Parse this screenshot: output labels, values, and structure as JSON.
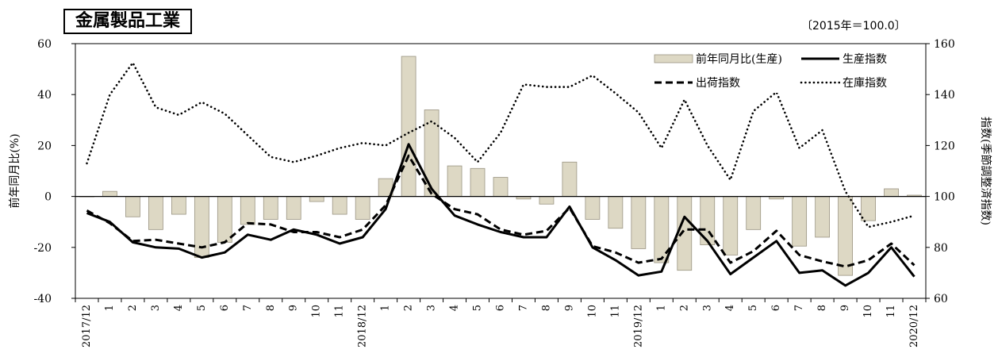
{
  "title": "金属製品工業",
  "base_note": "〔2015年＝100.0〕",
  "chart_data": {
    "type": "bar+line",
    "categories": [
      "2017/12",
      "1",
      "2",
      "3",
      "4",
      "5",
      "6",
      "7",
      "8",
      "9",
      "10",
      "11",
      "2018/12",
      "1",
      "2",
      "3",
      "4",
      "5",
      "6",
      "7",
      "8",
      "9",
      "10",
      "11",
      "2019/12",
      "1",
      "2",
      "3",
      "4",
      "5",
      "6",
      "7",
      "8",
      "9",
      "10",
      "11",
      "2020/12"
    ],
    "ylabel_left": "前年同月比(%)",
    "ylabel_right": "指数(季節調整済指数)",
    "yleft_range": [
      -40,
      60
    ],
    "yleft_ticks": [
      -40,
      -20,
      0,
      20,
      40,
      60
    ],
    "yright_range": [
      60,
      160
    ],
    "yright_ticks": [
      60,
      80,
      100,
      120,
      140,
      160
    ],
    "series": [
      {
        "name": "前年同月比(生産)",
        "type": "bar",
        "axis": "left",
        "color": "#ddd8c4",
        "values": [
          0,
          2,
          -8,
          -13,
          -7,
          -24,
          -18,
          -11,
          -9,
          -9,
          -2,
          -7,
          -9,
          7,
          55,
          34,
          12,
          11,
          7.5,
          -1,
          -3,
          13.5,
          -9,
          -12.5,
          -20.5,
          -26,
          -29,
          -19,
          -23,
          -13,
          -1,
          -19.5,
          -16,
          -31,
          -9.5,
          3,
          0.5
        ]
      },
      {
        "name": "生産指数",
        "type": "line",
        "axis": "right",
        "style": "solid",
        "values": [
          93.5,
          90,
          82,
          80,
          79.5,
          76,
          78,
          85,
          83,
          87,
          85,
          81.5,
          84,
          95,
          120.5,
          103,
          92.5,
          89,
          86,
          84,
          84,
          96,
          80,
          75,
          69,
          70.5,
          92,
          82.5,
          69.5,
          76,
          82.5,
          70,
          71,
          65,
          70,
          80,
          68.5
        ]
      },
      {
        "name": "出荷指数",
        "type": "line",
        "axis": "right",
        "style": "dashed",
        "values": [
          94.5,
          89.5,
          82.5,
          83,
          81.5,
          80,
          82,
          89.5,
          89,
          86,
          86,
          84,
          87,
          96.5,
          116,
          101,
          95,
          93,
          87,
          85,
          86.5,
          95.5,
          80.5,
          78,
          74,
          75.5,
          87,
          87,
          74,
          78.5,
          86.5,
          77,
          74.5,
          72.5,
          75,
          81.5,
          73
        ]
      },
      {
        "name": "在庫指数",
        "type": "line",
        "axis": "right",
        "style": "dotted",
        "values": [
          113,
          140,
          152.5,
          135,
          132,
          137,
          132.5,
          124,
          115.5,
          113.5,
          116,
          119,
          121,
          120,
          125,
          129.5,
          123,
          113.5,
          125,
          144,
          143,
          143,
          147.5,
          140.5,
          133,
          119,
          138,
          120,
          106.5,
          133.5,
          141,
          119,
          126,
          102,
          88,
          90,
          92.5
        ]
      }
    ],
    "legend_placement": "top-right"
  }
}
